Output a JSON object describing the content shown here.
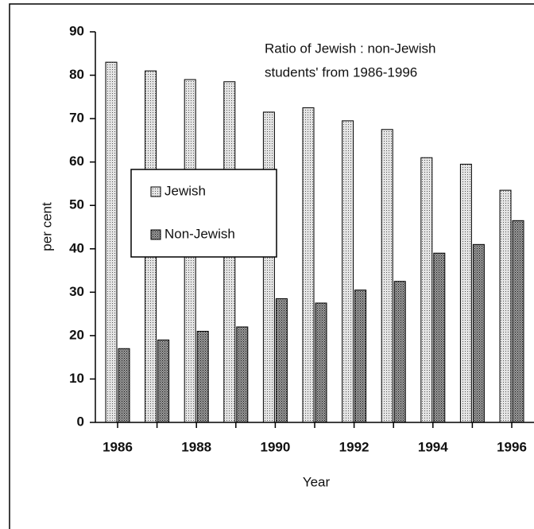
{
  "chart_data": {
    "type": "bar",
    "title": [
      "Ratio of Jewish : non-Jewish",
      "students' from 1986-1996"
    ],
    "x_label": "Year",
    "y_label": "per cent",
    "categories": [
      "1986",
      null,
      "1988",
      null,
      "1990",
      null,
      "1992",
      null,
      "1994",
      null,
      "1996"
    ],
    "series": [
      {
        "name": "Jewish",
        "color": "#e4e4e4",
        "values": [
          83,
          81,
          79,
          78.5,
          71.5,
          72.5,
          69.5,
          67.5,
          61,
          59.5,
          53.5
        ]
      },
      {
        "name": "Non-Jewish",
        "color": "#9a9a9a",
        "values": [
          17,
          19,
          21,
          22,
          28.5,
          27.5,
          30.5,
          32.5,
          39,
          41,
          46.5
        ]
      }
    ],
    "ylim": [
      0,
      90
    ],
    "yticks": [
      0,
      10,
      20,
      30,
      40,
      50,
      60,
      70,
      80,
      90
    ]
  }
}
